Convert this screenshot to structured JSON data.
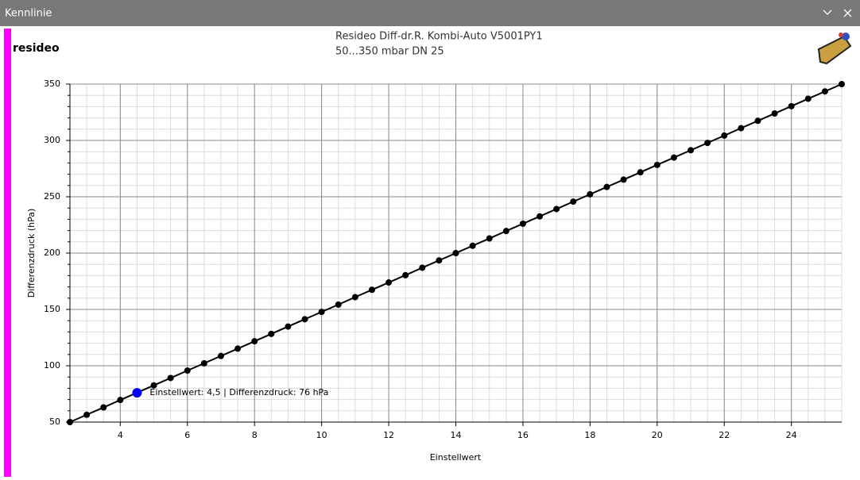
{
  "window": {
    "title": "Kennlinie"
  },
  "logo": "resideo",
  "chart_data": {
    "type": "line",
    "title": "Resideo Diff-dr.R. Kombi-Auto V5001PY1",
    "subtitle": "50...350 mbar DN 25",
    "xlabel": "Einstellwert",
    "ylabel": "Differenzdruck (hPa)",
    "x": [
      2.5,
      3,
      3.5,
      4,
      4.5,
      5,
      5.5,
      6,
      6.5,
      7,
      7.5,
      8,
      8.5,
      9,
      9.5,
      10,
      10.5,
      11,
      11.5,
      12,
      12.5,
      13,
      13.5,
      14,
      14.5,
      15,
      15.5,
      16,
      16.5,
      17,
      17.5,
      18,
      18.5,
      19,
      19.5,
      20,
      20.5,
      21,
      21.5,
      22,
      22.5,
      23,
      23.5,
      24,
      24.5,
      25,
      25.5
    ],
    "series": [
      {
        "color": "#000000",
        "values": [
          50,
          56.5,
          63.0,
          69.6,
          76.1,
          82.6,
          89.1,
          95.7,
          102.2,
          108.7,
          115.2,
          121.7,
          128.3,
          134.8,
          141.3,
          147.8,
          154.3,
          160.9,
          167.4,
          173.9,
          180.4,
          187.0,
          193.5,
          200.0,
          206.5,
          213.0,
          219.6,
          226.1,
          232.6,
          239.1,
          245.7,
          252.2,
          258.7,
          265.2,
          271.7,
          278.3,
          284.8,
          291.3,
          297.8,
          304.3,
          310.9,
          317.4,
          323.9,
          330.4,
          337.0,
          343.5,
          350
        ]
      }
    ],
    "highlight": {
      "x": 4.5,
      "y": 76,
      "color": "#0000ff",
      "label": "Einstellwert: 4,5 | Differenzdruck: 76 hPa"
    },
    "xlim": [
      2.5,
      25.5
    ],
    "xticks": [
      4,
      6,
      8,
      10,
      12,
      14,
      16,
      18,
      20,
      22,
      24
    ],
    "ylim": [
      50,
      350
    ],
    "yticks": [
      50,
      100,
      150,
      200,
      250,
      300,
      350
    ],
    "grid": true,
    "minor_grid": true
  }
}
